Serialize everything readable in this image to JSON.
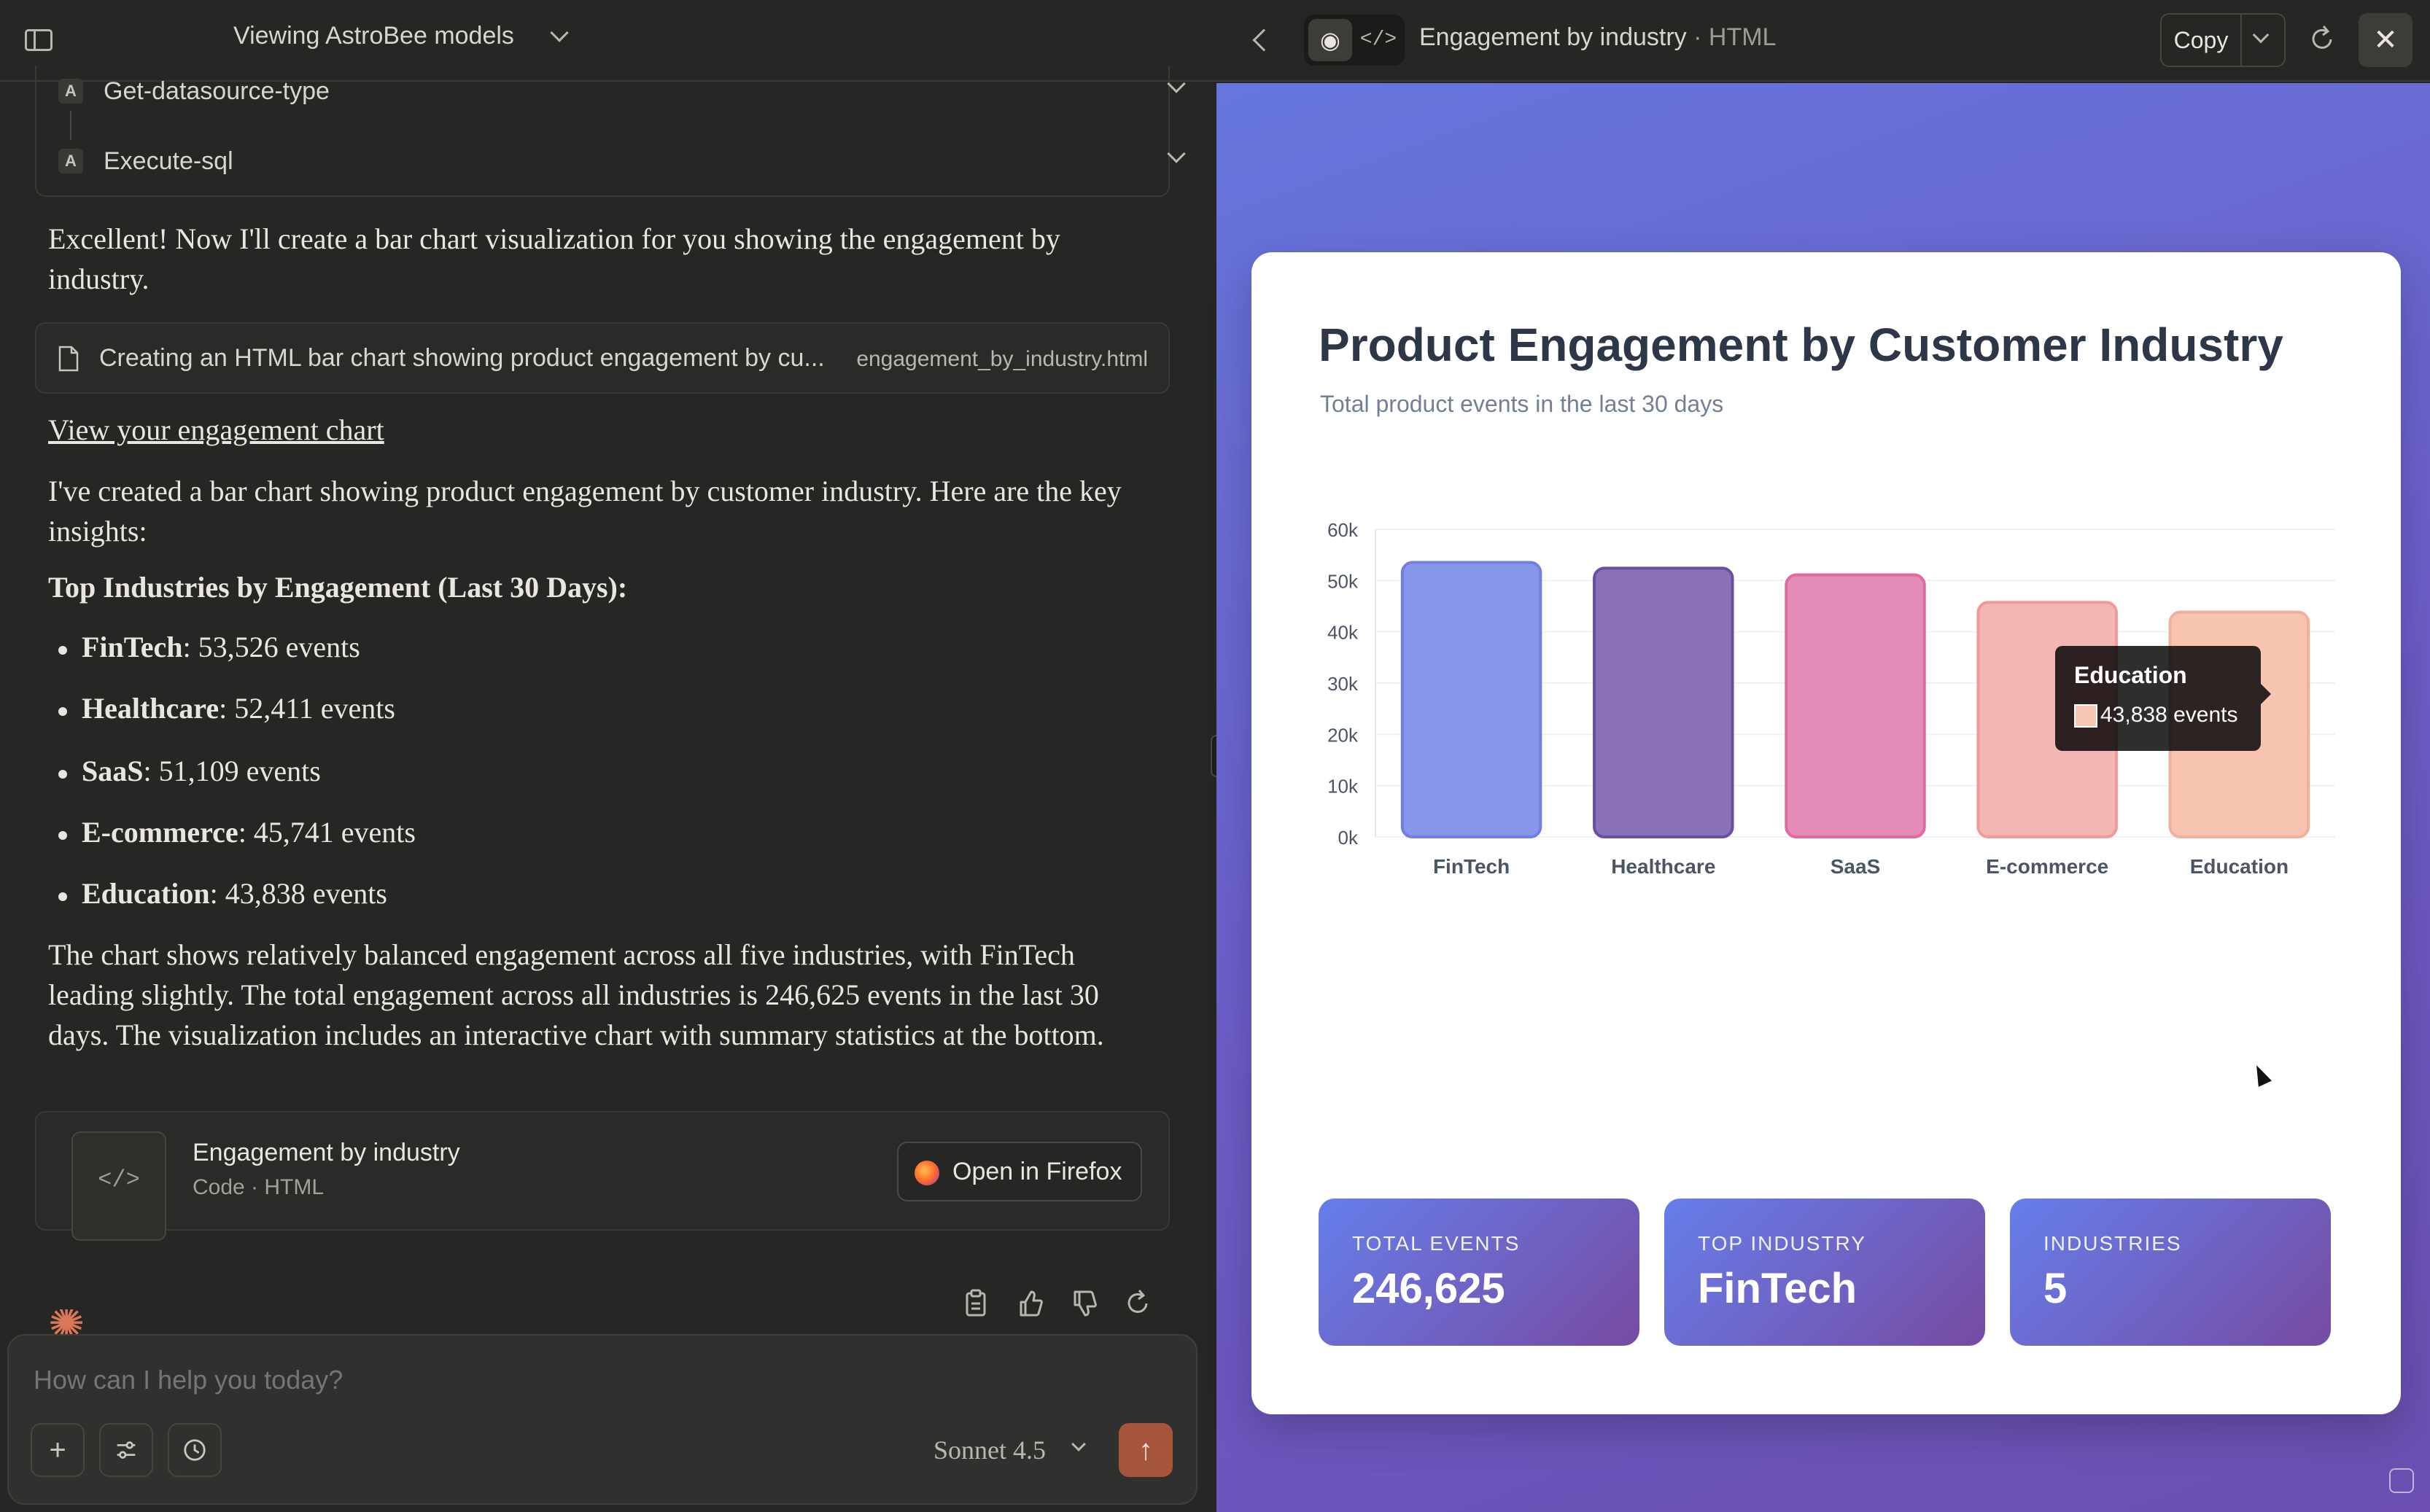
{
  "header_left": {
    "project_title": "Viewing AstroBee models"
  },
  "tools": [
    {
      "badge": "A",
      "label": "Get-datasource-type"
    },
    {
      "badge": "A",
      "label": "Execute-sql"
    }
  ],
  "messages": {
    "intro": "Excellent! Now I'll create a bar chart visualization for you showing the engagement by industry.",
    "artifact_line": {
      "text": "Creating an HTML bar chart showing product engagement by cu...",
      "file": "engagement_by_industry.html"
    },
    "link": "View your engagement chart",
    "summary": "I've created a bar chart showing product engagement by customer industry. Here are the key insights:",
    "heading": "Top Industries by Engagement (Last 30 Days):",
    "bullets": [
      {
        "name": "FinTech",
        "value": ": 53,526 events"
      },
      {
        "name": "Healthcare",
        "value": ": 52,411 events"
      },
      {
        "name": "SaaS",
        "value": ": 51,109 events"
      },
      {
        "name": "E-commerce",
        "value": ": 45,741 events"
      },
      {
        "name": "Education",
        "value": ": 43,838 events"
      }
    ],
    "conclusion": "The chart shows relatively balanced engagement across all five industries, with FinTech leading slightly. The total engagement across all industries is 246,625 events in the last 30 days. The visualization includes an interactive chart with summary statistics at the bottom."
  },
  "artifact_card": {
    "title": "Engagement by industry",
    "subtitle": "Code · HTML",
    "thumb": "</>",
    "open_button": "Open in Firefox"
  },
  "composer": {
    "placeholder": "How can I help you today?",
    "model": "Sonnet 4.5"
  },
  "header_right": {
    "title": "Engagement by industry",
    "title_suffix": " · HTML",
    "copy_label": "Copy"
  },
  "preview": {
    "title": "Product Engagement by Customer Industry",
    "subtitle": "Total product events in the last 30 days",
    "tooltip": {
      "title": "Education",
      "value": "43,838 events"
    },
    "stats": [
      {
        "label": "TOTAL EVENTS",
        "value": "246,625"
      },
      {
        "label": "TOP INDUSTRY",
        "value": "FinTech"
      },
      {
        "label": "INDUSTRIES",
        "value": "5"
      }
    ]
  },
  "chart_data": {
    "type": "bar",
    "categories": [
      "FinTech",
      "Healthcare",
      "SaaS",
      "E-commerce",
      "Education"
    ],
    "values": [
      53526,
      52411,
      51109,
      45741,
      43838
    ],
    "ylim": [
      0,
      60000
    ],
    "yticks": [
      0,
      10000,
      20000,
      30000,
      40000,
      50000,
      60000
    ],
    "ytick_labels": [
      "0k",
      "10k",
      "20k",
      "30k",
      "40k",
      "50k",
      "60k"
    ],
    "colors": [
      {
        "fill": "#8796ea",
        "stroke": "#6f7fe4"
      },
      {
        "fill": "#8a72b8",
        "stroke": "#6c4e9f"
      },
      {
        "fill": "#e58bb8",
        "stroke": "#dd6aa4"
      },
      {
        "fill": "#f3b6b3",
        "stroke": "#f19b98"
      },
      {
        "fill": "#f6c4b1",
        "stroke": "#f2b09a"
      }
    ],
    "grid": true,
    "legend": "none"
  }
}
